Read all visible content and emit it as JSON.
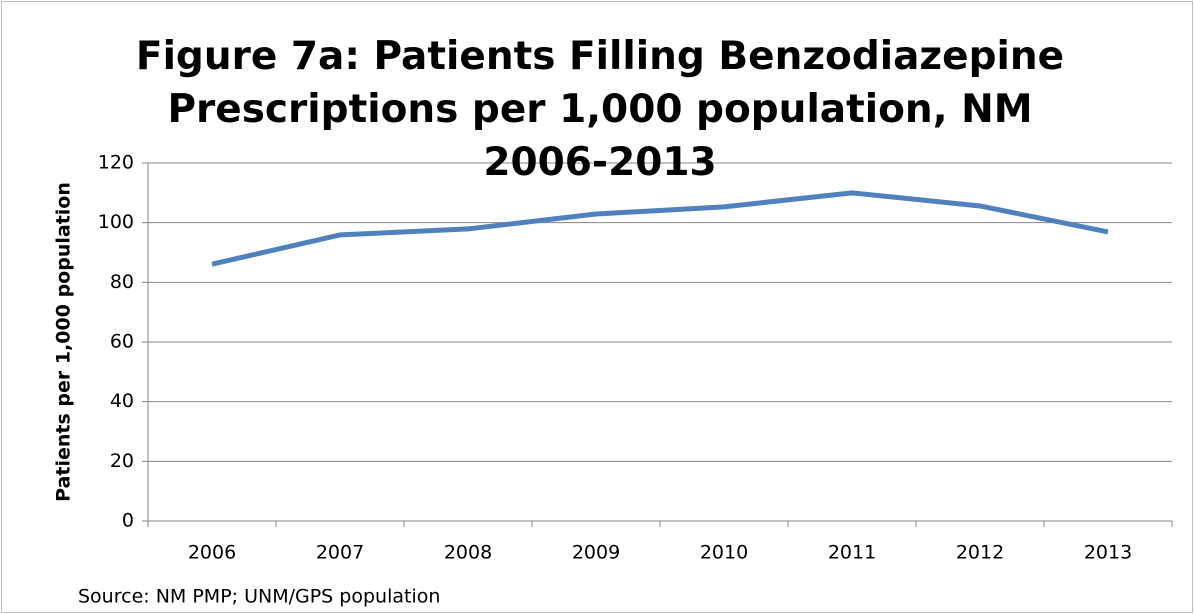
{
  "chart_data": {
    "type": "line",
    "title": "Figure 7a: Patients Filling Benzodiazepine Prescriptions per 1,000 population, NM 2006-2013",
    "y_label": "Patients per 1,000 population",
    "note": "Source:  NM PMP; UNM/GPS population",
    "categories": [
      "2006",
      "2007",
      "2008",
      "2009",
      "2010",
      "2011",
      "2012",
      "2013"
    ],
    "series": [
      {
        "name": "Patients per 1,000 population",
        "color": "#4f81bd",
        "values": [
          86.1,
          95.9,
          97.9,
          102.9,
          105.3,
          110,
          105.6,
          96.9
        ]
      }
    ],
    "ylim": [
      0,
      120
    ],
    "yticks": [
      0,
      20,
      40,
      60,
      80,
      100,
      120
    ],
    "grid": true
  }
}
